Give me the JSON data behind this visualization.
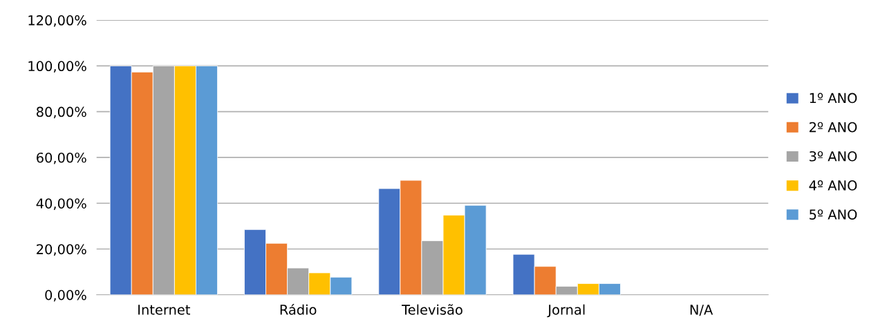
{
  "chart_data": {
    "type": "bar",
    "categories": [
      "Internet",
      "Rádio",
      "Televisão",
      "Jornal",
      "N/A"
    ],
    "series": [
      {
        "name": "1º ANO",
        "color": "#4472c4",
        "values": [
          100,
          28.5,
          46.4,
          17.7,
          null
        ]
      },
      {
        "name": "2º ANO",
        "color": "#ed7d31",
        "values": [
          97.3,
          22.5,
          50,
          12.4,
          null
        ]
      },
      {
        "name": "3º ANO",
        "color": "#a5a5a5",
        "values": [
          100,
          11.7,
          23.6,
          3.7,
          null
        ]
      },
      {
        "name": "4º ANO",
        "color": "#ffc000",
        "values": [
          100,
          9.6,
          34.8,
          4.9,
          null
        ]
      },
      {
        "name": "5º ANO",
        "color": "#5b9bd5",
        "values": [
          100,
          7.7,
          39.1,
          4.9,
          null
        ]
      }
    ],
    "ylim": [
      0,
      120
    ],
    "yticks": [
      {
        "value": 0,
        "label": "0,00%"
      },
      {
        "value": 20,
        "label": "20,00%"
      },
      {
        "value": 40,
        "label": "40,00%"
      },
      {
        "value": 60,
        "label": "60,00%"
      },
      {
        "value": 80,
        "label": "80,00%"
      },
      {
        "value": 100,
        "label": "100,00%"
      },
      {
        "value": 120,
        "label": "120,00%"
      }
    ],
    "grid": "y",
    "legend": "right"
  }
}
